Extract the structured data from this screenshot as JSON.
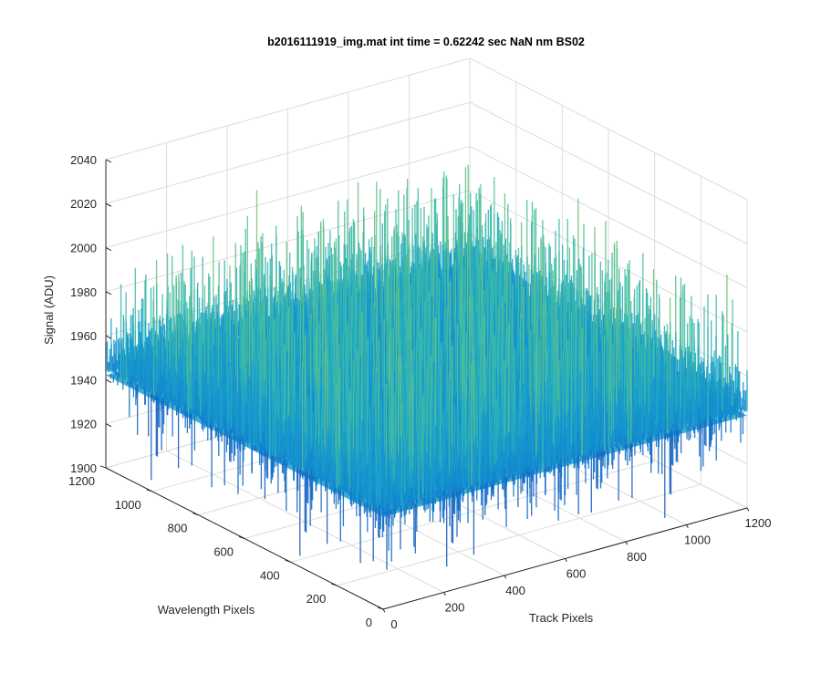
{
  "chart_data": {
    "type": "surface",
    "title": "b2016111919_img.mat int time = 0.62242 sec  NaN nm BS02",
    "xlabel": "Track Pixels",
    "ylabel": "Wavelength Pixels",
    "zlabel": "Signal (ADU)",
    "xlim": [
      0,
      1200
    ],
    "ylim": [
      0,
      1200
    ],
    "zlim": [
      1900,
      2040
    ],
    "xticks": [
      "0",
      "200",
      "400",
      "600",
      "800",
      "1000",
      "1200"
    ],
    "yticks": [
      "0",
      "200",
      "400",
      "600",
      "800",
      "1000",
      "1200"
    ],
    "zticks": [
      "1900",
      "1920",
      "1940",
      "2000",
      "2020",
      "2040"
    ],
    "zticks_full": [
      "1900",
      "1920",
      "1940",
      "1960",
      "1980",
      "2000",
      "2020",
      "2040"
    ],
    "surface": {
      "x_extent": [
        0,
        1200
      ],
      "y_extent": [
        0,
        1200
      ],
      "mean_signal": 1950,
      "noise_low": 1910,
      "noise_high": 2030
    },
    "grid": true,
    "colormap": "parula",
    "colors": {
      "low": "#0a72bd",
      "mid": "#22a9c8",
      "high": "#8cc95a",
      "axis": "#262626",
      "grid": "#dcdcdc"
    }
  }
}
